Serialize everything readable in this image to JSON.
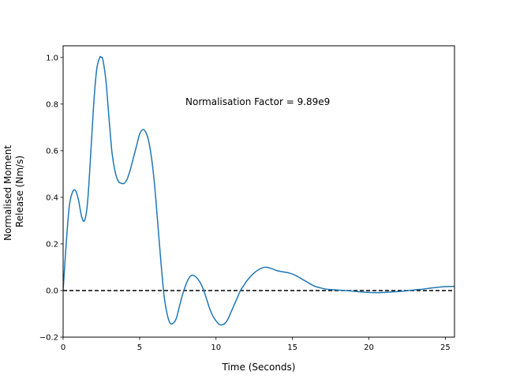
{
  "chart_data": {
    "type": "line",
    "title": "",
    "xlabel": "Time (Seconds)",
    "ylabel_lines": [
      "Normalised Moment",
      "Release (Nm/s)"
    ],
    "xlim": [
      0,
      25.6
    ],
    "ylim": [
      -0.2,
      1.05
    ],
    "x_ticks": [
      0,
      5,
      10,
      15,
      20,
      25
    ],
    "x_tick_labels": [
      "0",
      "5",
      "10",
      "15",
      "20",
      "25"
    ],
    "y_ticks": [
      -0.2,
      0.0,
      0.2,
      0.4,
      0.6,
      0.8,
      1.0
    ],
    "y_tick_labels": [
      "−0.2",
      "0.0",
      "0.2",
      "0.4",
      "0.6",
      "0.8",
      "1.0"
    ],
    "grid": false,
    "annotation": {
      "text": "Normalisation Factor = 9.89e9",
      "x": 8.0,
      "y": 0.81
    },
    "reference_line": {
      "y": 0.0,
      "style": "dashed",
      "color": "#000000"
    },
    "series": [
      {
        "color": "#1f77b4",
        "x": [
          0,
          0.2,
          0.4,
          0.6,
          0.8,
          1.0,
          1.2,
          1.4,
          1.6,
          1.8,
          2.0,
          2.2,
          2.4,
          2.5,
          2.6,
          2.8,
          3.0,
          3.2,
          3.4,
          3.6,
          3.8,
          4.0,
          4.2,
          4.4,
          4.6,
          4.8,
          5.0,
          5.2,
          5.4,
          5.6,
          5.8,
          6.0,
          6.2,
          6.4,
          6.6,
          6.8,
          7.0,
          7.2,
          7.4,
          7.6,
          7.8,
          8.0,
          8.2,
          8.4,
          8.6,
          8.8,
          9.0,
          9.2,
          9.4,
          9.6,
          9.8,
          10.0,
          10.2,
          10.4,
          10.6,
          10.8,
          11.0,
          11.2,
          11.4,
          11.6,
          11.8,
          12.0,
          12.4,
          12.8,
          13.2,
          13.6,
          14.0,
          14.4,
          14.8,
          15.2,
          15.6,
          16.0,
          16.4,
          16.8,
          17.2,
          17.6,
          18.0,
          18.5,
          19.0,
          19.5,
          20.0,
          20.5,
          21.0,
          21.5,
          22.0,
          22.5,
          23.0,
          23.5,
          24.0,
          24.5,
          25.0,
          25.6
        ],
        "y": [
          0.0,
          0.2,
          0.36,
          0.42,
          0.43,
          0.39,
          0.32,
          0.3,
          0.38,
          0.58,
          0.8,
          0.95,
          1.0,
          1.0,
          0.99,
          0.9,
          0.74,
          0.59,
          0.51,
          0.47,
          0.46,
          0.46,
          0.48,
          0.52,
          0.57,
          0.62,
          0.67,
          0.69,
          0.68,
          0.64,
          0.56,
          0.44,
          0.28,
          0.12,
          -0.02,
          -0.1,
          -0.14,
          -0.14,
          -0.12,
          -0.07,
          -0.02,
          0.02,
          0.05,
          0.065,
          0.063,
          0.05,
          0.03,
          0.0,
          -0.04,
          -0.08,
          -0.11,
          -0.13,
          -0.145,
          -0.147,
          -0.14,
          -0.12,
          -0.09,
          -0.06,
          -0.03,
          0.0,
          0.02,
          0.04,
          0.07,
          0.09,
          0.1,
          0.095,
          0.085,
          0.08,
          0.075,
          0.065,
          0.05,
          0.035,
          0.02,
          0.012,
          0.006,
          0.004,
          0.002,
          0.0,
          -0.003,
          -0.006,
          -0.008,
          -0.009,
          -0.008,
          -0.006,
          -0.004,
          -0.001,
          0.003,
          0.006,
          0.01,
          0.014,
          0.017,
          0.018
        ]
      }
    ]
  }
}
